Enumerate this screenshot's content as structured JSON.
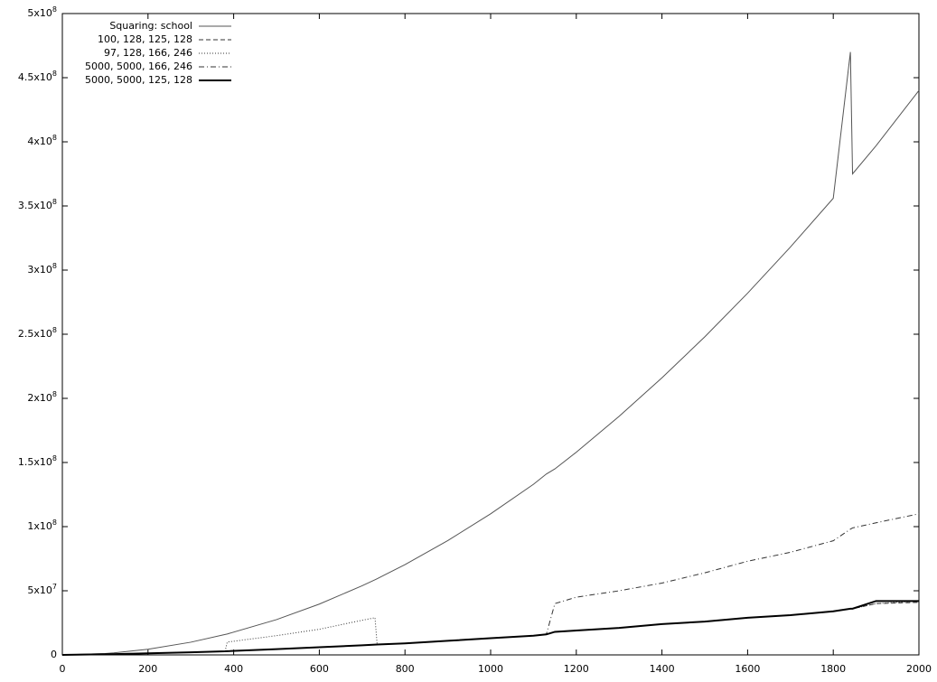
{
  "chart_data": {
    "type": "line",
    "x": [
      0,
      100,
      120,
      200,
      300,
      380,
      385,
      500,
      600,
      700,
      730,
      735,
      800,
      900,
      1000,
      1100,
      1130,
      1150,
      1200,
      1300,
      1400,
      1500,
      1600,
      1700,
      1800,
      1840,
      1845,
      1900,
      2000
    ],
    "series": [
      {
        "name": "Squaring: school",
        "color": "#555555",
        "dash": "solid",
        "width": 1,
        "values": [
          0,
          1100000,
          1580000,
          4400000,
          9900000,
          15900000,
          16300000,
          27500000,
          39600000,
          53900000,
          58600000,
          59400000,
          70400000,
          89100000,
          110000000,
          133000000,
          141000000,
          145000000,
          158000000,
          186000000,
          216000000,
          248000000,
          282000000,
          318000000,
          356000000,
          470000000,
          375000000,
          397000000,
          440000000
        ]
      },
      {
        "name": "100, 128, 125, 128",
        "color": "#333333",
        "dash": "dashed",
        "width": 1,
        "values": [
          0,
          500000,
          600000,
          1200000,
          2000000,
          2800000,
          2900000,
          4500000,
          6000000,
          7500000,
          8000000,
          8100000,
          9000000,
          11000000,
          13000000,
          15000000,
          16000000,
          18000000,
          19000000,
          21000000,
          24000000,
          26000000,
          29000000,
          31000000,
          34000000,
          36000000,
          36000000,
          40000000,
          41000000
        ]
      },
      {
        "name": "97, 128, 166, 246",
        "color": "#333333",
        "dash": "dotted",
        "width": 1,
        "values": [
          0,
          500000,
          600000,
          1200000,
          2000000,
          2800000,
          10000000,
          15000000,
          20000000,
          27000000,
          29000000,
          8100000,
          9000000,
          11000000,
          13000000,
          15000000,
          16000000,
          18000000,
          19000000,
          21000000,
          24000000,
          26000000,
          29000000,
          31000000,
          34000000,
          36000000,
          36000000,
          40000000,
          42000000
        ]
      },
      {
        "name": "5000, 5000, 166, 246",
        "color": "#333333",
        "dash": "dashdot",
        "width": 1,
        "values": [
          0,
          500000,
          600000,
          1200000,
          2000000,
          2800000,
          2900000,
          4500000,
          6000000,
          7500000,
          8000000,
          8100000,
          9000000,
          11000000,
          13000000,
          15000000,
          16000000,
          40000000,
          45000000,
          50000000,
          56000000,
          64000000,
          73000000,
          80000000,
          89000000,
          98000000,
          99000000,
          103000000,
          110000000
        ]
      },
      {
        "name": "5000, 5000, 125, 128",
        "color": "#000000",
        "dash": "solid",
        "width": 2,
        "values": [
          0,
          500000,
          600000,
          1200000,
          2000000,
          2800000,
          2900000,
          4500000,
          6000000,
          7500000,
          8000000,
          8100000,
          9000000,
          11000000,
          13000000,
          15000000,
          16000000,
          18000000,
          19000000,
          21000000,
          24000000,
          26000000,
          29000000,
          31000000,
          34000000,
          36000000,
          36000000,
          42000000,
          42000000
        ]
      }
    ],
    "xlim": [
      0,
      2000
    ],
    "xticks": [
      0,
      200,
      400,
      600,
      800,
      1000,
      1200,
      1400,
      1600,
      1800,
      2000
    ],
    "ylim": [
      0,
      500000000
    ],
    "yticks": [
      0,
      {
        "value": 50000000,
        "label": "5x10",
        "exponent": "7"
      },
      {
        "value": 100000000,
        "label": "1x10",
        "exponent": "8"
      },
      {
        "value": 150000000,
        "label": "1.5x10",
        "exponent": "8"
      },
      {
        "value": 200000000,
        "label": "2x10",
        "exponent": "8"
      },
      {
        "value": 250000000,
        "label": "2.5x10",
        "exponent": "8"
      },
      {
        "value": 300000000,
        "label": "3x10",
        "exponent": "8"
      },
      {
        "value": 350000000,
        "label": "3.5x10",
        "exponent": "8"
      },
      {
        "value": 400000000,
        "label": "4x10",
        "exponent": "8"
      },
      {
        "value": 450000000,
        "label": "4.5x10",
        "exponent": "8"
      },
      {
        "value": 500000000,
        "label": "5x10",
        "exponent": "8"
      }
    ],
    "legend": "top-left",
    "grid": false
  }
}
